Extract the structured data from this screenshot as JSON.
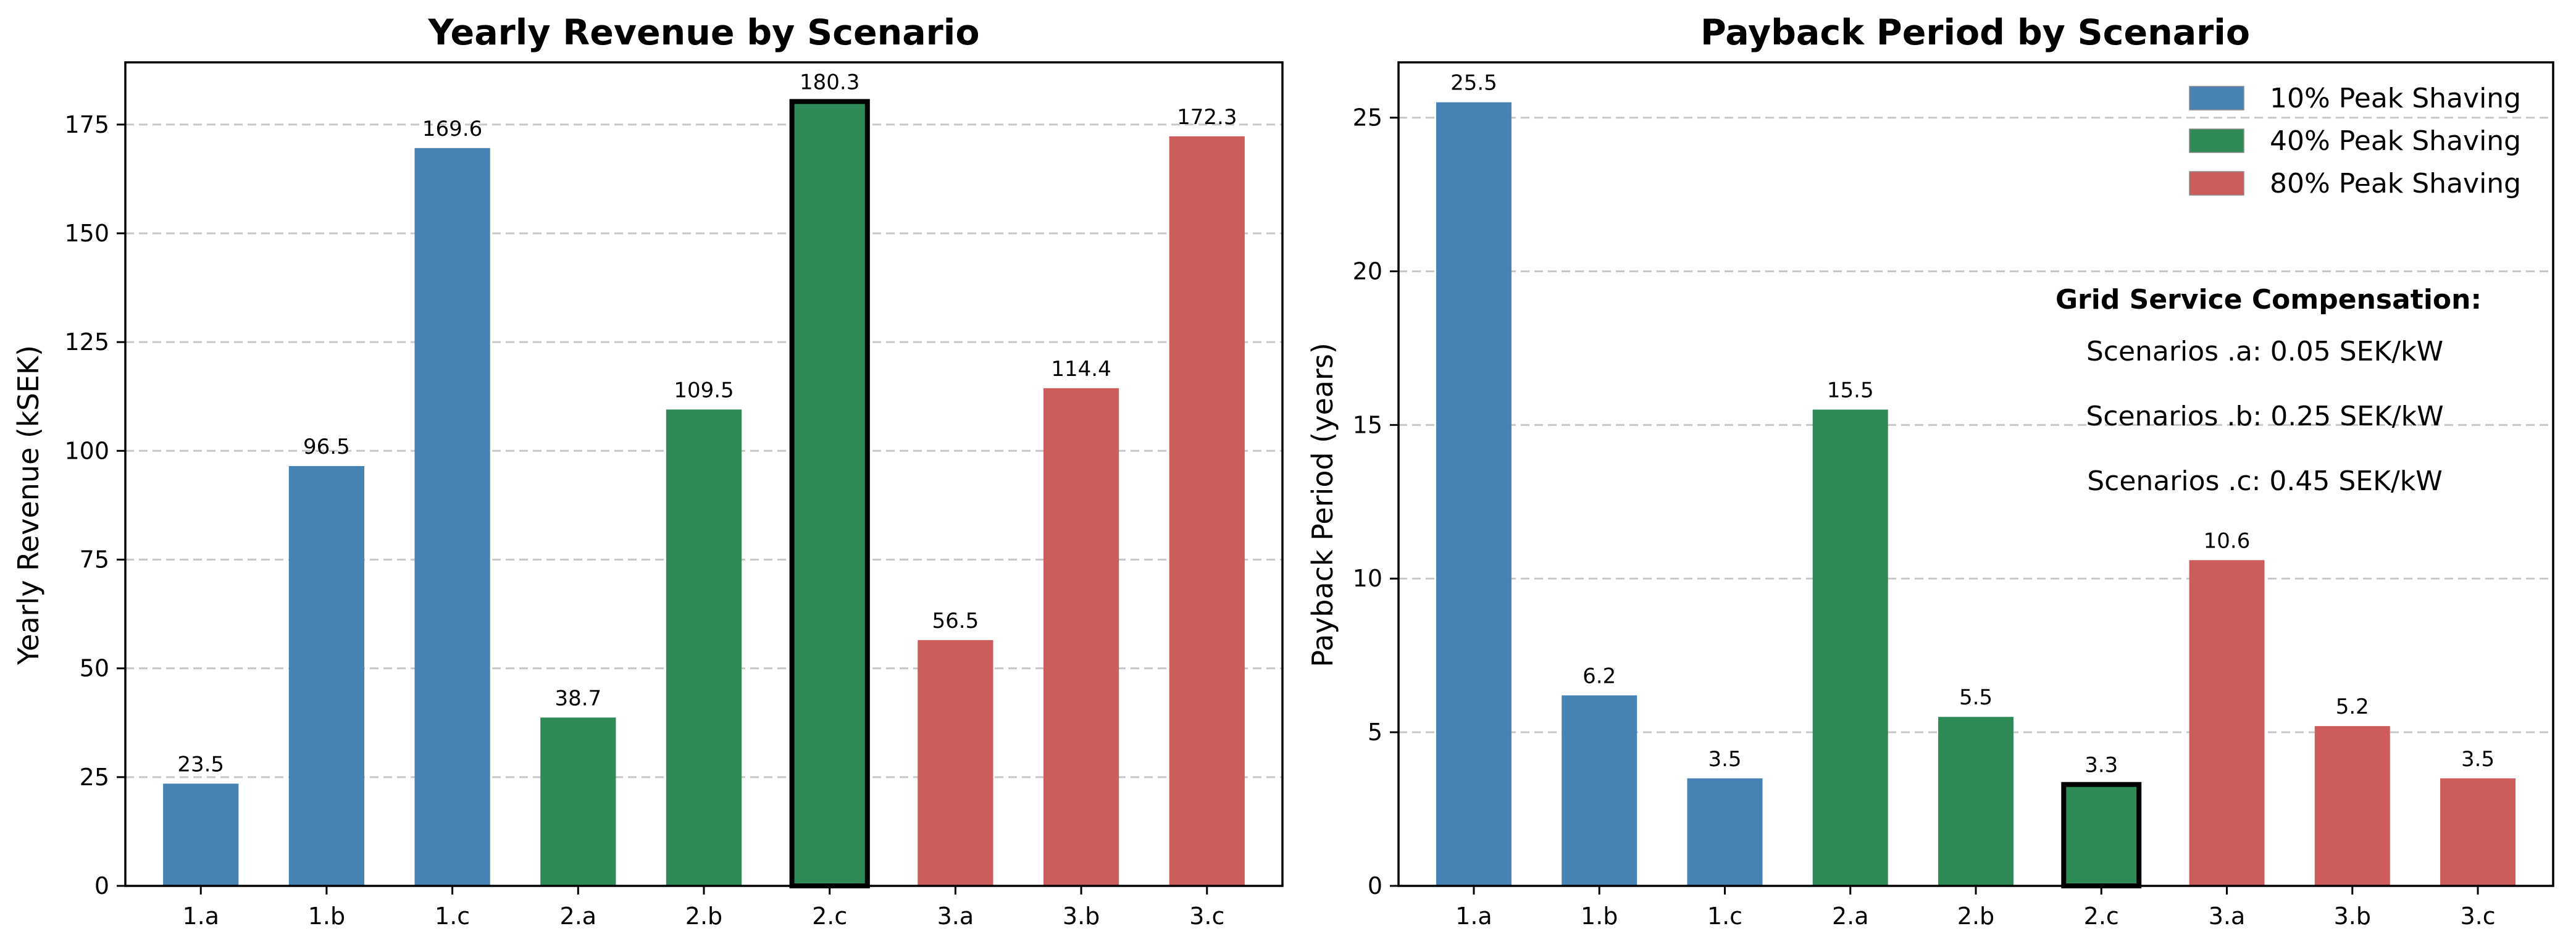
{
  "chart_data": [
    {
      "type": "bar",
      "title": "Yearly Revenue by Scenario",
      "xlabel": "",
      "ylabel": "Yearly Revenue (kSEK)",
      "categories": [
        "1.a",
        "1.b",
        "1.c",
        "2.a",
        "2.b",
        "2.c",
        "3.a",
        "3.b",
        "3.c"
      ],
      "values": [
        23.5,
        96.5,
        169.6,
        38.7,
        109.5,
        180.3,
        56.5,
        114.4,
        172.3
      ],
      "value_labels": [
        "23.5",
        "96.5",
        "169.6",
        "38.7",
        "109.5",
        "180.3",
        "56.5",
        "114.4",
        "172.3"
      ],
      "bar_colors": [
        "#4682b4",
        "#4682b4",
        "#4682b4",
        "#2e8b57",
        "#2e8b57",
        "#2e8b57",
        "#cd5c5c",
        "#cd5c5c",
        "#cd5c5c"
      ],
      "highlighted_category": "2.c",
      "ylim": [
        0,
        189.3
      ],
      "yticks": [
        0,
        25,
        50,
        75,
        100,
        125,
        150,
        175
      ],
      "grid": "y-dashed"
    },
    {
      "type": "bar",
      "title": "Payback Period by Scenario",
      "xlabel": "",
      "ylabel": "Payback Period (years)",
      "categories": [
        "1.a",
        "1.b",
        "1.c",
        "2.a",
        "2.b",
        "2.c",
        "3.a",
        "3.b",
        "3.c"
      ],
      "values": [
        25.5,
        6.2,
        3.5,
        15.5,
        5.5,
        3.3,
        10.6,
        5.2,
        3.5
      ],
      "value_labels": [
        "25.5",
        "6.2",
        "3.5",
        "15.5",
        "5.5",
        "3.3",
        "10.6",
        "5.2",
        "3.5"
      ],
      "bar_colors": [
        "#4682b4",
        "#4682b4",
        "#4682b4",
        "#2e8b57",
        "#2e8b57",
        "#2e8b57",
        "#cd5c5c",
        "#cd5c5c",
        "#cd5c5c"
      ],
      "highlighted_category": "2.c",
      "ylim": [
        0,
        26.8
      ],
      "yticks": [
        0,
        5,
        10,
        15,
        20,
        25
      ],
      "grid": "y-dashed",
      "legend": {
        "placement": "top-right",
        "entries": [
          {
            "label": "10% Peak Shaving",
            "color": "#4682b4"
          },
          {
            "label": "40% Peak Shaving",
            "color": "#2e8b57"
          },
          {
            "label": "80% Peak Shaving",
            "color": "#cd5c5c"
          }
        ]
      },
      "annotation": {
        "title": "Grid Service Compensation:",
        "lines": [
          "Scenarios .a: 0.05 SEK/kW",
          "Scenarios .b: 0.25 SEK/kW",
          "Scenarios .c: 0.45 SEK/kW"
        ]
      }
    }
  ]
}
